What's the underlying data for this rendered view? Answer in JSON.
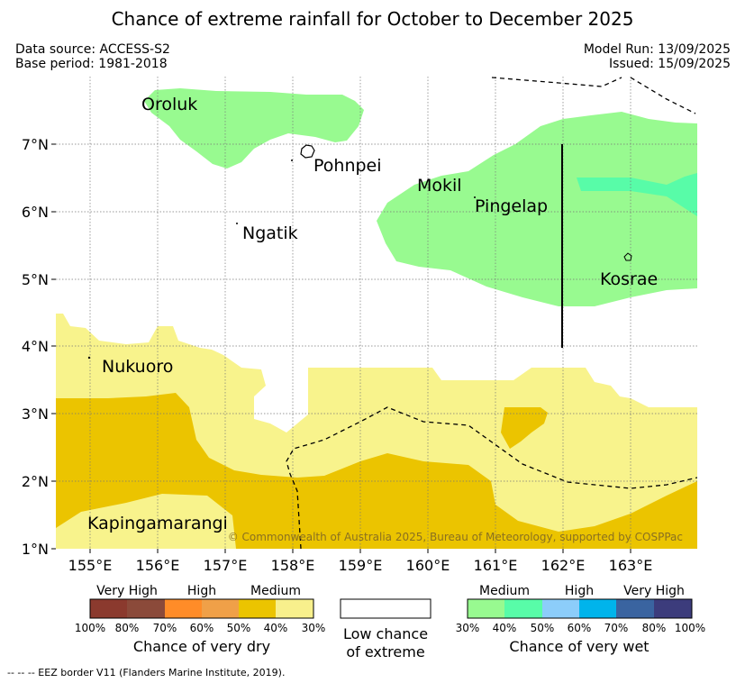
{
  "title": "Chance of extreme rainfall for October to December 2025",
  "meta": {
    "data_source": "Data source: ACCESS-S2",
    "base_period": "Base period: 1981-2018",
    "model_run": "Model Run: 13/09/2025",
    "issued": "Issued: 15/09/2025"
  },
  "axes": {
    "x_ticks": [
      "155°E",
      "156°E",
      "157°E",
      "158°E",
      "159°E",
      "160°E",
      "161°E",
      "162°E",
      "163°E"
    ],
    "y_ticks": [
      "7°N",
      "6°N",
      "5°N",
      "4°N",
      "3°N",
      "2°N",
      "1°N"
    ]
  },
  "places": {
    "oroluk": "Oroluk",
    "pohnpei": "Pohnpei",
    "mokil": "Mokil",
    "pingelap": "Pingelap",
    "ngatik": "Ngatik",
    "kosrae": "Kosrae",
    "nukuoro": "Nukuoro",
    "kapingamarangi": "Kapingamarangi"
  },
  "copyright": "© Commonwealth of Australia 2025, Bureau of Meteorology, supported by COSPPac",
  "legend": {
    "dry": {
      "categories": [
        "Very High",
        "High",
        "Medium"
      ],
      "percentages": [
        "100%",
        "80%",
        "70%",
        "60%",
        "50%",
        "40%",
        "30%"
      ],
      "title": "Chance of very dry",
      "colors": [
        "#8b3a2e",
        "#8b4a3a",
        "#ff8c28",
        "#f0a048",
        "#ebc400",
        "#f8f08c"
      ]
    },
    "low": {
      "line1": "Low chance",
      "line2": "of extreme"
    },
    "wet": {
      "categories": [
        "Medium",
        "High",
        "Very High"
      ],
      "percentages": [
        "30%",
        "40%",
        "50%",
        "60%",
        "70%",
        "80%",
        "100%"
      ],
      "title": "Chance of very wet",
      "colors": [
        "#98fa90",
        "#58fca8",
        "#8ccdfa",
        "#00b4eb",
        "#3a64a0",
        "#3c3c7c"
      ]
    }
  },
  "footnote": "--  --  -- EEZ border V11 (Flanders Marine Institute, 2019)."
}
